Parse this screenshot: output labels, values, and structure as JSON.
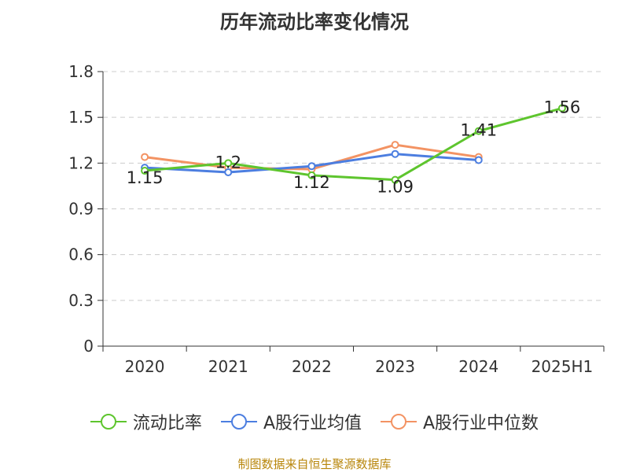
{
  "chart_data": {
    "type": "line",
    "title": "历年流动比率变化情况",
    "categories": [
      "2020",
      "2021",
      "2022",
      "2023",
      "2024",
      "2025H1"
    ],
    "ylim": [
      0,
      1.8
    ],
    "yticks": [
      "0",
      "0.3",
      "0.6",
      "0.9",
      "1.2",
      "1.5",
      "1.8"
    ],
    "grid": true,
    "legend_position": "bottom",
    "series": [
      {
        "name": "流动比率",
        "color": "#5ec52e",
        "values": [
          1.15,
          1.2,
          1.12,
          1.09,
          1.41,
          1.56
        ],
        "labels": [
          "1.15",
          "1.2",
          "1.12",
          "1.09",
          "1.41",
          "1.56"
        ]
      },
      {
        "name": "A股行业均值",
        "color": "#4c7ee0",
        "values": [
          1.17,
          1.14,
          1.18,
          1.26,
          1.22,
          null
        ]
      },
      {
        "name": "A股行业中位数",
        "color": "#f39363",
        "values": [
          1.24,
          1.17,
          1.16,
          1.32,
          1.24,
          null
        ]
      }
    ]
  },
  "source_note": "制图数据来自恒生聚源数据库"
}
